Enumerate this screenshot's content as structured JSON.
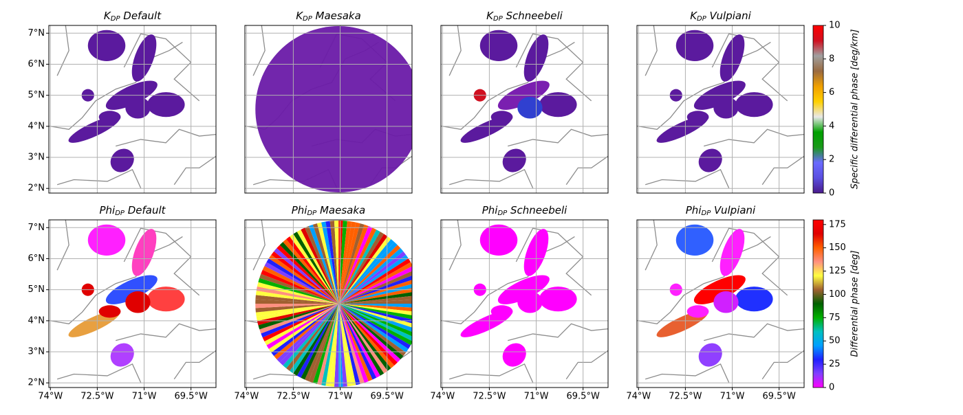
{
  "chart_data": {
    "type": "radar-map-grid",
    "xlim": [
      -74.05,
      -68.7
    ],
    "ylim": [
      1.85,
      7.25
    ],
    "xticks": [
      {
        "value": -74,
        "label": "74°W"
      },
      {
        "value": -72.5,
        "label": "72.5°W"
      },
      {
        "value": -71,
        "label": "71°W"
      },
      {
        "value": -69.5,
        "label": "69.5°W"
      }
    ],
    "yticks": [
      {
        "value": 2,
        "label": "2°N"
      },
      {
        "value": 3,
        "label": "3°N"
      },
      {
        "value": 4,
        "label": "4°N"
      },
      {
        "value": 5,
        "label": "5°N"
      },
      {
        "value": 6,
        "label": "6°N"
      },
      {
        "value": 7,
        "label": "7°N"
      }
    ],
    "grid": true,
    "panels": [
      {
        "title": "K",
        "title_sub": "DP",
        "title_text": "Default"
      },
      {
        "title": "K",
        "title_sub": "DP",
        "title_text": "Maesaka"
      },
      {
        "title": "K",
        "title_sub": "DP",
        "title_text": "Schneebeli"
      },
      {
        "title": "K",
        "title_sub": "DP",
        "title_text": "Vulpiani"
      },
      {
        "title": "Phi",
        "title_sub": "DP",
        "title_text": "Default"
      },
      {
        "title": "Phi",
        "title_sub": "DP",
        "title_text": "Maesaka"
      },
      {
        "title": "Phi",
        "title_sub": "DP",
        "title_text": "Schneebeli"
      },
      {
        "title": "Phi",
        "title_sub": "DP",
        "title_text": "Vulpiani"
      }
    ],
    "colorbars": [
      {
        "label": "Specific differential phase [deg/km]",
        "lim": [
          0,
          10
        ],
        "ticks": [
          0,
          2,
          4,
          6,
          8,
          10
        ],
        "colors": [
          "#4a1a8c",
          "#5a4fe0",
          "#6a6aff",
          "#1a9a1a",
          "#00a000",
          "#e8e8e8",
          "#ffd000",
          "#f0a000",
          "#9a6a40",
          "#a0a0a0",
          "#d01020",
          "#ff0000"
        ]
      },
      {
        "label": "Differential phase [deg]",
        "lim": [
          0,
          180
        ],
        "ticks": [
          0,
          25,
          50,
          75,
          100,
          125,
          150,
          175
        ],
        "colors": [
          "#ff00ff",
          "#8040ff",
          "#2020ff",
          "#00a0ff",
          "#00c0c0",
          "#00b000",
          "#006000",
          "#a06030",
          "#ffff40",
          "#ff9080",
          "#ff6000",
          "#e00000",
          "#ff0000"
        ]
      }
    ]
  }
}
